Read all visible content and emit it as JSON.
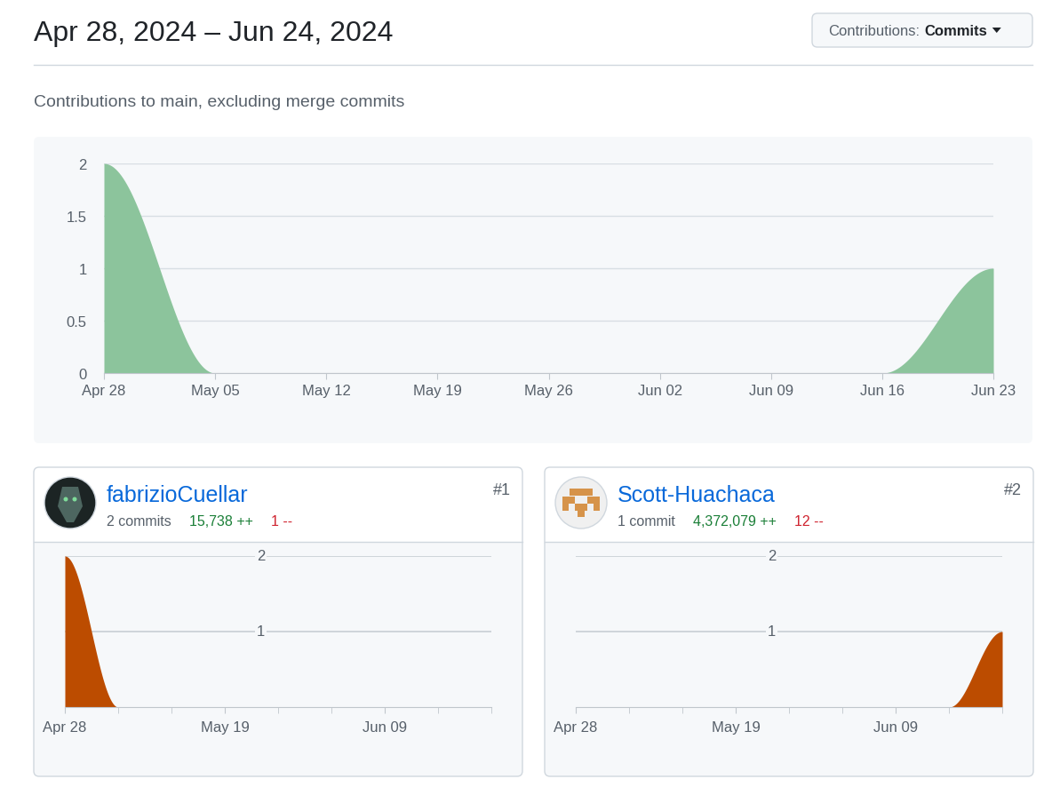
{
  "header": {
    "title": "Apr 28, 2024 – Jun 24, 2024",
    "dropdown": {
      "label": "Contributions:",
      "value": "Commits"
    },
    "subtitle": "Contributions to main, excluding merge commits"
  },
  "chart_data": [
    {
      "type": "area",
      "categories": [
        "Apr 28",
        "May 05",
        "May 12",
        "May 19",
        "May 26",
        "Jun 02",
        "Jun 09",
        "Jun 16",
        "Jun 23"
      ],
      "values": [
        2,
        0,
        0,
        0,
        0,
        0,
        0,
        0,
        1
      ],
      "color": "#8cc49c",
      "ylim": [
        0,
        2
      ],
      "yticks": [
        0,
        0.5,
        1,
        1.5,
        2
      ],
      "grid": true
    },
    {
      "type": "area",
      "categories": [
        "Apr 28",
        null,
        null,
        "May 19",
        null,
        null,
        "Jun 09",
        null,
        null
      ],
      "values": [
        2,
        0,
        0,
        0,
        0,
        0,
        0,
        0,
        0
      ],
      "color": "#bc4c00",
      "ylim": [
        0,
        2
      ],
      "yticks": [
        1,
        2
      ],
      "grid": true
    },
    {
      "type": "area",
      "categories": [
        "Apr 28",
        null,
        null,
        "May 19",
        null,
        null,
        "Jun 09",
        null,
        null
      ],
      "values": [
        0,
        0,
        0,
        0,
        0,
        0,
        0,
        0,
        1
      ],
      "color": "#bc4c00",
      "ylim": [
        0,
        2
      ],
      "yticks": [
        1,
        2
      ],
      "grid": true
    }
  ],
  "cards": [
    {
      "name": "fabrizioCuellar",
      "rank": "#1",
      "commits": "2 commits",
      "additions": "15,738 ++",
      "deletions": "1 --"
    },
    {
      "name": "Scott-Huachaca",
      "rank": "#2",
      "commits": "1 commit",
      "additions": "4,372,079 ++",
      "deletions": "12 --"
    }
  ]
}
